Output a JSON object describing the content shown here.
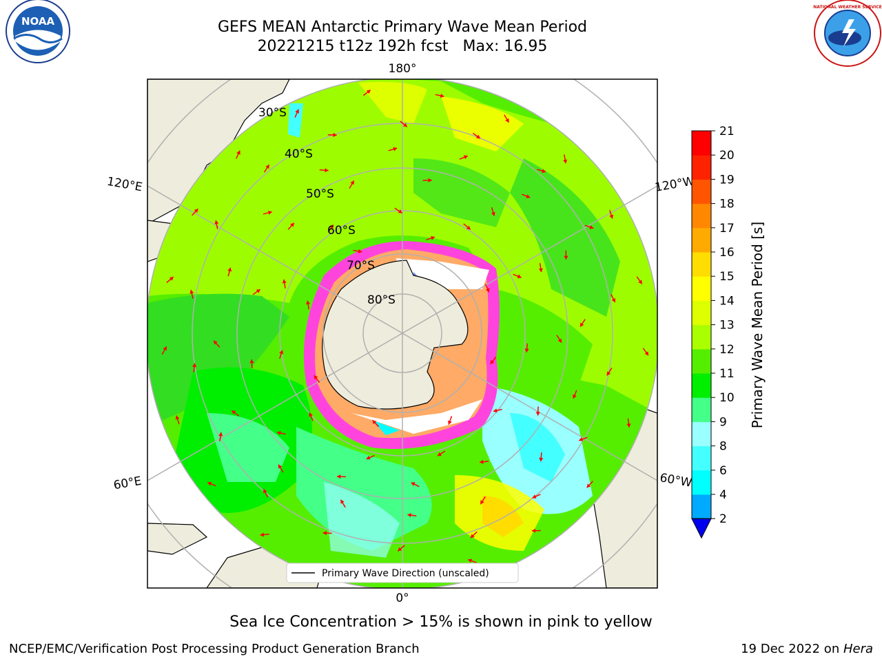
{
  "title": {
    "line1": "GEFS MEAN Antarctic Primary Wave Mean Period",
    "line2_date": "20221215 t12z 192h fcst",
    "line2_max": "Max: 16.95"
  },
  "map": {
    "longitude_labels": {
      "top": "180°",
      "bottom": "0°",
      "upper_left": "120°E",
      "upper_right": "120°W",
      "lower_left": "60°E",
      "lower_right": "60°W"
    },
    "latitude_labels": [
      "30°S",
      "40°S",
      "50°S",
      "60°S",
      "70°S",
      "80°S"
    ],
    "legend_label": "Primary Wave Direction (unscaled)",
    "colors": {
      "land": "#eeecdc",
      "ocean_green": "#33dd22",
      "ice_pink": "#ff44dd",
      "arrow": "#ff0000"
    }
  },
  "colorbar": {
    "label": "Primary Wave Mean Period [s]",
    "ticks": [
      "2",
      "4",
      "6",
      "8",
      "9",
      "10",
      "11",
      "12",
      "13",
      "14",
      "15",
      "16",
      "17",
      "18",
      "19",
      "20",
      "21"
    ],
    "colors": [
      "#0044ff",
      "#00aaff",
      "#00ffff",
      "#44ffff",
      "#99ffff",
      "#44ff88",
      "#00ee00",
      "#55ee00",
      "#aaff00",
      "#ddff00",
      "#ffff00",
      "#ffdd00",
      "#ffaa00",
      "#ff8800",
      "#ff5500",
      "#ff2200",
      "#ff0000"
    ],
    "extend_color": "#0000ee"
  },
  "footer": {
    "note": "Sea Ice Concentration > 15% is shown in pink to yellow",
    "credit_left": "NCEP/EMC/Verification Post Processing Product Generation Branch",
    "credit_date": "19 Dec 2022 on ",
    "credit_machine": "Hera"
  },
  "logos": {
    "noaa": "NOAA",
    "nws": "NATIONAL WEATHER SERVICE"
  }
}
